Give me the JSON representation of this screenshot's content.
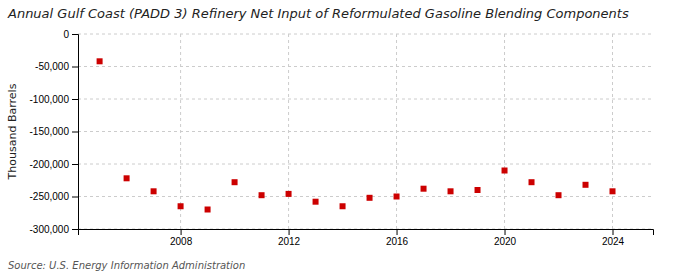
{
  "chart_data": {
    "type": "scatter",
    "title": "Annual Gulf Coast (PADD 3) Refinery Net Input of Reformulated Gasoline Blending Components",
    "ylabel": "Thousand Barrels",
    "source": "Source: U.S. Energy Information Administration",
    "x": [
      2005,
      2006,
      2007,
      2008,
      2009,
      2010,
      2011,
      2012,
      2013,
      2014,
      2015,
      2016,
      2017,
      2018,
      2019,
      2020,
      2021,
      2022,
      2023,
      2024
    ],
    "values": [
      -42000,
      -222000,
      -242000,
      -265000,
      -270000,
      -228000,
      -248000,
      -246000,
      -258000,
      -265000,
      -252000,
      -250000,
      -238000,
      -242000,
      -240000,
      -210000,
      -228000,
      -248000,
      -232000,
      -242000
    ],
    "color": "#cc0000",
    "marker": "square",
    "xlim": [
      2004.2,
      2025.5
    ],
    "xticks": [
      2008,
      2012,
      2016,
      2020,
      2024
    ],
    "ylim": [
      -300000,
      0
    ],
    "yticks": [
      0,
      {
        "value": -50000,
        "label": "-50,000"
      },
      {
        "value": -100000,
        "label": "-100,000"
      },
      {
        "value": -150000,
        "label": "-150,000"
      },
      {
        "value": -200000,
        "label": "-200,000"
      },
      {
        "value": -250000,
        "label": "-250,000"
      },
      {
        "value": -300000,
        "label": "-300,000"
      }
    ],
    "grid": true
  }
}
